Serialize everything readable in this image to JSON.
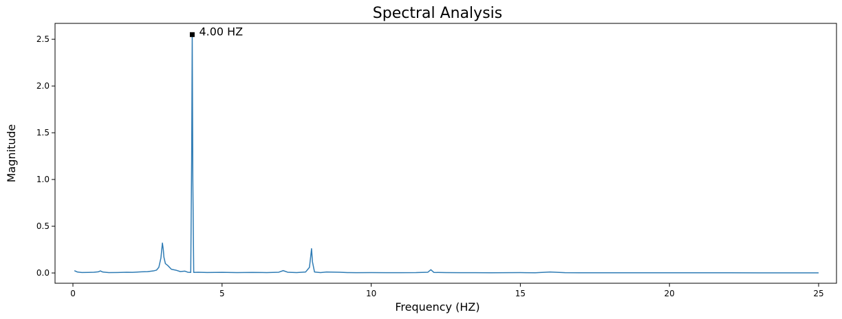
{
  "chart_data": {
    "type": "line",
    "title": "Spectral Analysis",
    "xlabel": "Frequency (HZ)",
    "ylabel": "Magnitude",
    "xlim": [
      -0.6,
      25.6
    ],
    "ylim": [
      -0.11,
      2.67
    ],
    "xticks": [
      0,
      5,
      10,
      15,
      20,
      25
    ],
    "yticks": [
      0.0,
      0.5,
      1.0,
      1.5,
      2.0,
      2.5
    ],
    "xtick_labels": [
      "0",
      "5",
      "10",
      "15",
      "20",
      "25"
    ],
    "ytick_labels": [
      "0.0",
      "0.5",
      "1.0",
      "1.5",
      "2.0",
      "2.5"
    ],
    "grid": false,
    "line_color": "#2e7bb4",
    "series": [
      {
        "x": [
          0.05,
          0.15,
          0.3,
          0.5,
          0.7,
          0.85,
          0.92,
          1.0,
          1.2,
          1.5,
          1.8,
          2.0,
          2.3,
          2.5,
          2.7,
          2.8,
          2.88,
          2.95,
          3.0,
          3.03,
          3.05,
          3.1,
          3.18,
          3.3,
          3.45,
          3.6,
          3.75,
          3.85,
          3.95,
          3.98,
          4.0,
          4.02,
          4.05,
          4.2,
          4.5,
          5.0,
          5.5,
          6.0,
          6.5,
          6.9,
          7.05,
          7.2,
          7.5,
          7.8,
          7.93,
          7.98,
          8.0,
          8.03,
          8.1,
          8.3,
          8.5,
          8.95,
          9.2,
          9.5,
          10.0,
          10.5,
          11.0,
          11.5,
          11.9,
          12.0,
          12.1,
          12.5,
          13.0,
          13.5,
          14.0,
          14.5,
          15.0,
          15.5,
          16.0,
          16.5,
          17.0,
          18.0,
          19.0,
          20.0,
          21.0,
          22.0,
          23.0,
          24.0,
          25.0
        ],
        "y": [
          0.025,
          0.01,
          0.005,
          0.006,
          0.008,
          0.012,
          0.022,
          0.01,
          0.004,
          0.005,
          0.008,
          0.007,
          0.012,
          0.014,
          0.022,
          0.03,
          0.06,
          0.16,
          0.32,
          0.25,
          0.17,
          0.1,
          0.08,
          0.04,
          0.03,
          0.015,
          0.02,
          0.008,
          0.006,
          1.2,
          2.55,
          1.0,
          0.006,
          0.008,
          0.005,
          0.007,
          0.004,
          0.006,
          0.004,
          0.008,
          0.025,
          0.008,
          0.004,
          0.01,
          0.06,
          0.2,
          0.26,
          0.12,
          0.01,
          0.004,
          0.01,
          0.008,
          0.004,
          0.003,
          0.004,
          0.003,
          0.003,
          0.004,
          0.008,
          0.035,
          0.006,
          0.004,
          0.003,
          0.003,
          0.002,
          0.003,
          0.004,
          0.002,
          0.01,
          0.003,
          0.002,
          0.002,
          0.002,
          0.002,
          0.002,
          0.002,
          0.001,
          0.001,
          0.001
        ]
      }
    ],
    "peak": {
      "x": 4.0,
      "y": 2.55,
      "label": "4.00 HZ"
    }
  }
}
